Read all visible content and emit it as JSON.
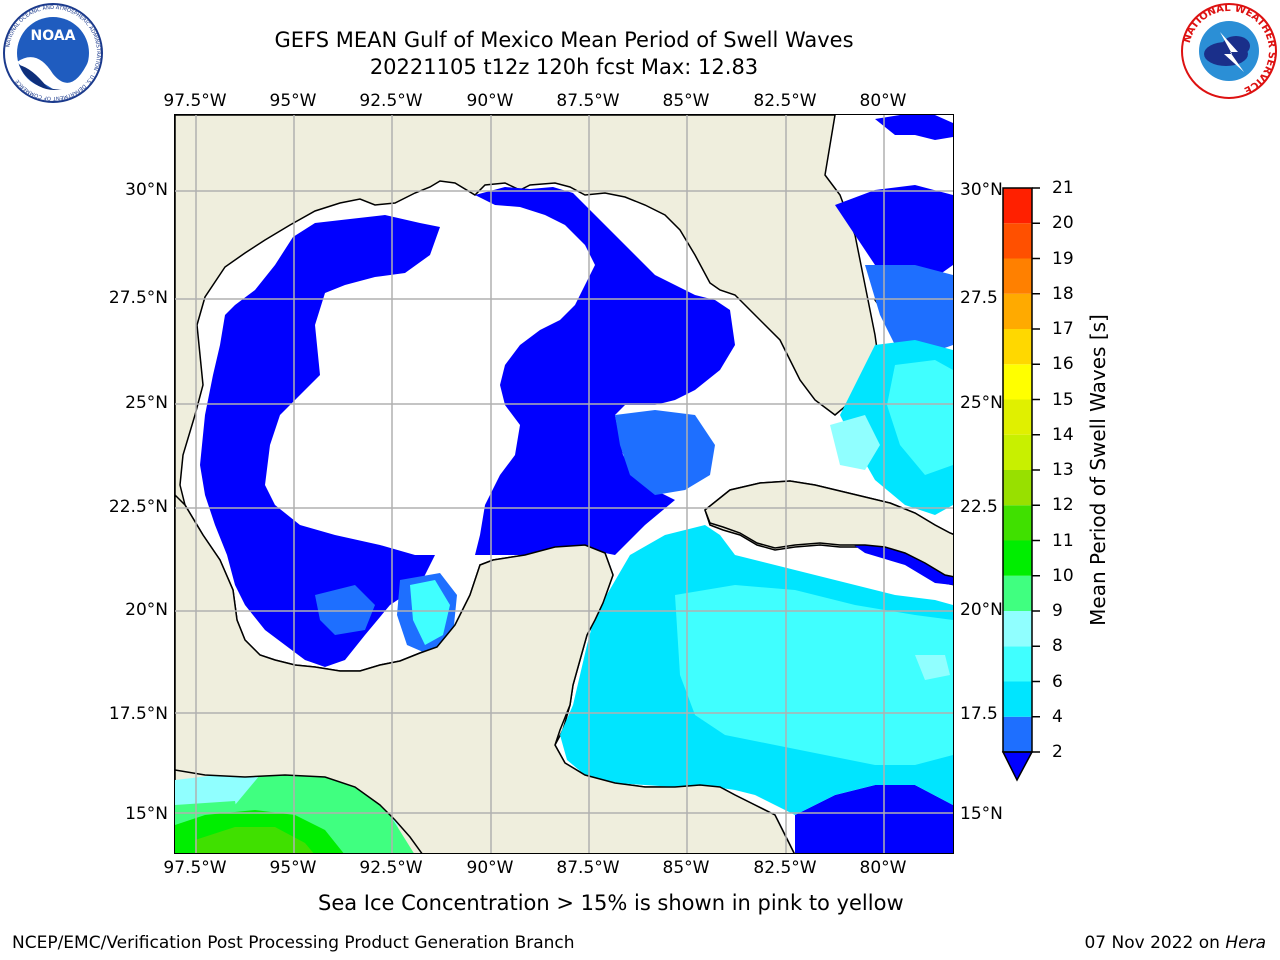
{
  "header": {
    "title_line1": "GEFS MEAN Gulf of Mexico Mean Period of Swell Waves",
    "title_line2": "20221105 t12z 120h fcst   Max: 12.83"
  },
  "logos": {
    "left": {
      "name": "NOAA",
      "text": "NOAA",
      "ring_text": "NATIONAL OCEANIC AND ATMOSPHERIC ADMINISTRATION · U.S. DEPARTMENT OF COMMERCE"
    },
    "right": {
      "name": "National Weather Service",
      "ring_text": "NATIONAL WEATHER SERVICE"
    }
  },
  "map": {
    "lon_ticks_top": [
      "97.5°W",
      "95°W",
      "92.5°W",
      "90°W",
      "87.5°W",
      "85°W",
      "82.5°W",
      "80°W"
    ],
    "lon_ticks_bottom": [
      "97.5°W",
      "95°W",
      "92.5°W",
      "90°W",
      "87.5°W",
      "85°W",
      "82.5°W",
      "80°W"
    ],
    "lat_ticks_left": [
      "30°N",
      "27.5°N",
      "25°N",
      "22.5°N",
      "20°N",
      "17.5°N",
      "15°N"
    ],
    "lat_ticks_right": [
      "30°N",
      "27.5",
      "25°N",
      "22.5",
      "20°N",
      "17.5",
      "15°N"
    ],
    "colors": {
      "land": "#efeedd",
      "grid": "#b0b0b0",
      "coast": "#000000"
    }
  },
  "colorbar": {
    "label": "Mean Period of Swell Waves [s]",
    "tick_labels": [
      "2",
      "4",
      "6",
      "8",
      "9",
      "10",
      "11",
      "12",
      "13",
      "14",
      "15",
      "16",
      "17",
      "18",
      "19",
      "20",
      "21"
    ],
    "levels": [
      2,
      4,
      6,
      8,
      9,
      10,
      11,
      12,
      13,
      14,
      15,
      16,
      17,
      18,
      19,
      20,
      21
    ],
    "colors": [
      "#0000ff",
      "#1e6fff",
      "#00e5ff",
      "#40ffff",
      "#90ffff",
      "#40ff80",
      "#00ee00",
      "#40e000",
      "#98e000",
      "#c8f000",
      "#e0f000",
      "#ffff00",
      "#ffd800",
      "#ffaa00",
      "#ff8000",
      "#ff5000",
      "#ff2000",
      "#ff0000"
    ],
    "under_color": "#0000ff"
  },
  "footer": {
    "note": "Sea Ice Concentration > 15% is shown in pink to yellow",
    "credit": "NCEP/EMC/Verification Post Processing Product Generation Branch",
    "date": "07 Nov 2022 on",
    "machine": "Hera"
  }
}
